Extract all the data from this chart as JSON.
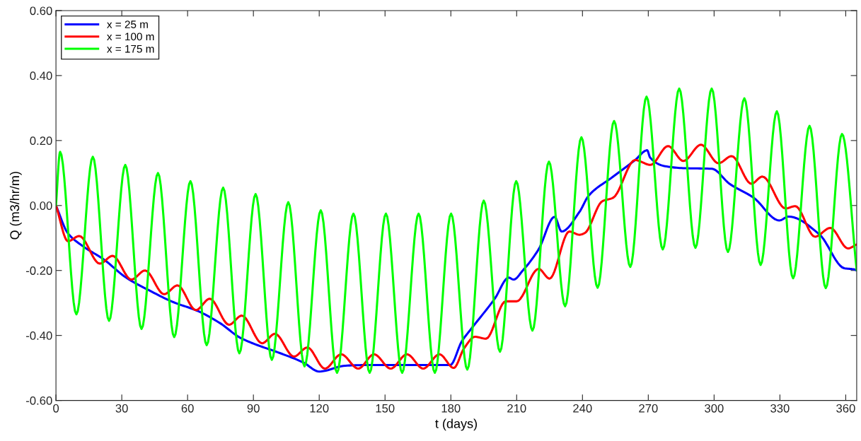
{
  "chart_data": {
    "type": "line",
    "xlabel": "t (days)",
    "ylabel": "Q (m3/hr/m)",
    "xlim": [
      0,
      365
    ],
    "xticks": [
      0,
      30,
      60,
      90,
      120,
      150,
      180,
      210,
      240,
      270,
      300,
      330,
      360
    ],
    "ylim": [
      -0.6,
      0.6
    ],
    "yticks": [
      {
        "value": -0.6,
        "label": "-0.60"
      },
      {
        "value": -0.4,
        "label": "-0.40"
      },
      {
        "value": -0.2,
        "label": "-0.20"
      },
      {
        "value": 0,
        "label": "0.00"
      },
      {
        "value": 0.2,
        "label": "0.20"
      },
      {
        "value": 0.4,
        "label": "0.40"
      },
      {
        "value": 0.6,
        "label": "0.60"
      }
    ],
    "grid": false,
    "legend": "top left",
    "marker": "none",
    "line_style": "solid",
    "series": [
      {
        "name": "x = 25 m",
        "color": "#0000ff",
        "x": [
          0,
          5.4,
          12.9,
          21.6,
          32,
          43,
          53.7,
          64.4,
          75,
          83.7,
          90,
          102,
          112.7,
          120,
          132,
          143,
          179.7,
          185,
          189,
          200,
          206.4,
          208.6,
          212.8,
          220,
          227.3,
          230.5,
          238.6,
          242.8,
          253.6,
          264,
          269.5,
          270.8,
          277,
          285.8,
          299,
          307,
          318,
          329.7,
          334,
          348,
          359.3,
          364,
          365
        ],
        "values": [
          0,
          -0.085,
          -0.128,
          -0.165,
          -0.222,
          -0.263,
          -0.298,
          -0.324,
          -0.363,
          -0.406,
          -0.425,
          -0.454,
          -0.483,
          -0.511,
          -0.493,
          -0.491,
          -0.491,
          -0.418,
          -0.382,
          -0.287,
          -0.222,
          -0.228,
          -0.2,
          -0.135,
          -0.035,
          -0.08,
          -0.02,
          0.03,
          0.087,
          0.14,
          0.17,
          0.148,
          0.122,
          0.115,
          0.113,
          0.067,
          0.024,
          -0.046,
          -0.034,
          -0.089,
          -0.193,
          -0.197,
          -0.2
        ]
      },
      {
        "name": "x = 100 m",
        "color": "#ff0000",
        "x": [
          0,
          5.5,
          10.6,
          20,
          25.8,
          34.4,
          40.6,
          49.3,
          55.4,
          63.8,
          70.1,
          78.9,
          84.7,
          94,
          99.8,
          108.5,
          114.6,
          122.6,
          130,
          137.8,
          145,
          152.6,
          160,
          167.4,
          174.8,
          181.3,
          186,
          191,
          196,
          205,
          210,
          220,
          225,
          234,
          238.6,
          241,
          249,
          254,
          264,
          271,
          279,
          286,
          294,
          302,
          308,
          317,
          322,
          332.6,
          337,
          346,
          353,
          361,
          365
        ],
        "values": [
          0,
          -0.11,
          -0.094,
          -0.179,
          -0.155,
          -0.228,
          -0.2,
          -0.273,
          -0.246,
          -0.322,
          -0.287,
          -0.367,
          -0.339,
          -0.424,
          -0.395,
          -0.465,
          -0.437,
          -0.502,
          -0.458,
          -0.502,
          -0.458,
          -0.502,
          -0.458,
          -0.502,
          -0.458,
          -0.5,
          -0.44,
          -0.404,
          -0.41,
          -0.295,
          -0.295,
          -0.195,
          -0.225,
          -0.08,
          -0.09,
          -0.085,
          0.013,
          0.024,
          0.14,
          0.125,
          0.183,
          0.137,
          0.187,
          0.13,
          0.152,
          0.067,
          0.089,
          -0.009,
          -0.002,
          -0.096,
          -0.069,
          -0.132,
          -0.12
        ]
      },
      {
        "name": "x = 175 m",
        "color": "#00ff00",
        "x": [
          0,
          1.9,
          9.3,
          16.8,
          24.2,
          31.6,
          39.0,
          46.5,
          53.9,
          61.3,
          68.7,
          76.2,
          83.6,
          91.0,
          98.4,
          105.9,
          113.3,
          120.7,
          128.1,
          135.6,
          143.0,
          150.4,
          157.8,
          165.3,
          172.7,
          180.1,
          187.5,
          195.0,
          202.4,
          209.8,
          217.2,
          224.7,
          232.1,
          239.5,
          246.9,
          254.4,
          261.8,
          269.2,
          276.6,
          284.1,
          291.5,
          298.9,
          306.3,
          313.8,
          321.2,
          328.6,
          336.0,
          343.5,
          350.9,
          358.3,
          365
        ],
        "values": [
          0,
          0.165,
          -0.335,
          0.15,
          -0.355,
          0.125,
          -0.38,
          0.1,
          -0.405,
          0.075,
          -0.43,
          0.055,
          -0.455,
          0.035,
          -0.475,
          0.01,
          -0.495,
          -0.015,
          -0.515,
          -0.025,
          -0.515,
          -0.025,
          -0.515,
          -0.025,
          -0.515,
          -0.025,
          -0.505,
          0.015,
          -0.45,
          0.075,
          -0.385,
          0.135,
          -0.31,
          0.21,
          -0.253,
          0.26,
          -0.189,
          0.335,
          -0.135,
          0.36,
          -0.13,
          0.36,
          -0.143,
          0.33,
          -0.183,
          0.29,
          -0.224,
          0.245,
          -0.254,
          0.22,
          -0.2
        ]
      }
    ]
  }
}
